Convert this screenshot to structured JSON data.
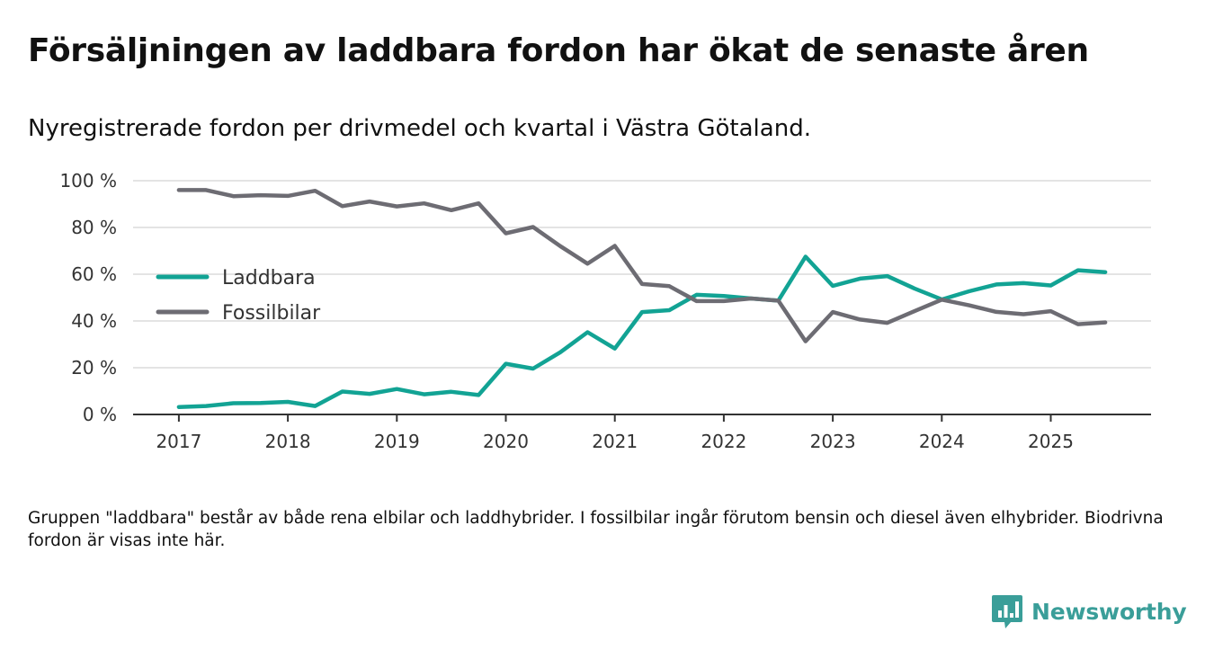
{
  "title": "Försäljningen av laddbara fordon har ökat de senaste åren",
  "subtitle": "Nyregistrerade fordon per drivmedel och kvartal i Västra Götaland.",
  "footnote": "Gruppen \"laddbara\" består av både rena elbilar och laddhybrider. I fossilbilar ingår förutom bensin och diesel även elhybrider. Biodrivna fordon är visas inte här.",
  "brand": {
    "name": "Newsworthy",
    "color": "#3a9e99",
    "icon": "newsworthy-logo-icon"
  },
  "chart_data": {
    "type": "line",
    "title": "Nyregistrerade fordon per drivmedel och kvartal i Västra Götaland.",
    "xlabel": "",
    "ylabel": "",
    "x": [
      2017.0,
      2017.25,
      2017.5,
      2017.75,
      2018.0,
      2018.25,
      2018.5,
      2018.75,
      2019.0,
      2019.25,
      2019.5,
      2019.75,
      2020.0,
      2020.25,
      2020.5,
      2020.75,
      2021.0,
      2021.25,
      2021.5,
      2021.75,
      2022.0,
      2022.25,
      2022.5,
      2022.75,
      2023.0,
      2023.25,
      2023.5,
      2023.75,
      2024.0,
      2024.25,
      2024.5,
      2024.75,
      2025.0,
      2025.25,
      2025.5
    ],
    "xlim": [
      2016.58,
      2025.92
    ],
    "ylim": [
      0,
      100
    ],
    "x_ticks": [
      2017,
      2018,
      2019,
      2020,
      2021,
      2022,
      2023,
      2024,
      2025
    ],
    "x_tick_labels": [
      "2017",
      "2018",
      "2019",
      "2020",
      "2021",
      "2022",
      "2023",
      "2024",
      "2025"
    ],
    "y_ticks": [
      0,
      20,
      40,
      60,
      80,
      100
    ],
    "y_tick_labels": [
      "0 %",
      "20 %",
      "40 %",
      "60 %",
      "80 %",
      "100 %"
    ],
    "grid": true,
    "legend_position": "center-left",
    "series": [
      {
        "name": "Laddbara",
        "color": "#12a394",
        "values": [
          3.2,
          3.6,
          4.8,
          4.9,
          5.4,
          3.6,
          9.8,
          8.8,
          10.9,
          8.6,
          9.7,
          8.3,
          21.7,
          19.6,
          26.6,
          35.2,
          28.2,
          43.8,
          44.6,
          51.2,
          50.7,
          49.6,
          48.7,
          67.5,
          55.0,
          58.1,
          59.2,
          53.9,
          49.2,
          52.7,
          55.6,
          56.2,
          55.2,
          61.7,
          60.9
        ]
      },
      {
        "name": "Fossilbilar",
        "color": "#6d6c73",
        "values": [
          96.0,
          96.0,
          93.4,
          93.8,
          93.5,
          95.7,
          89.1,
          91.1,
          89.0,
          90.3,
          87.4,
          90.3,
          77.5,
          80.2,
          72.0,
          64.5,
          72.1,
          55.8,
          54.9,
          48.5,
          48.5,
          49.6,
          48.7,
          31.3,
          43.8,
          40.6,
          39.2,
          44.2,
          49.1,
          46.7,
          43.9,
          42.9,
          44.2,
          38.6,
          39.4
        ]
      }
    ]
  }
}
